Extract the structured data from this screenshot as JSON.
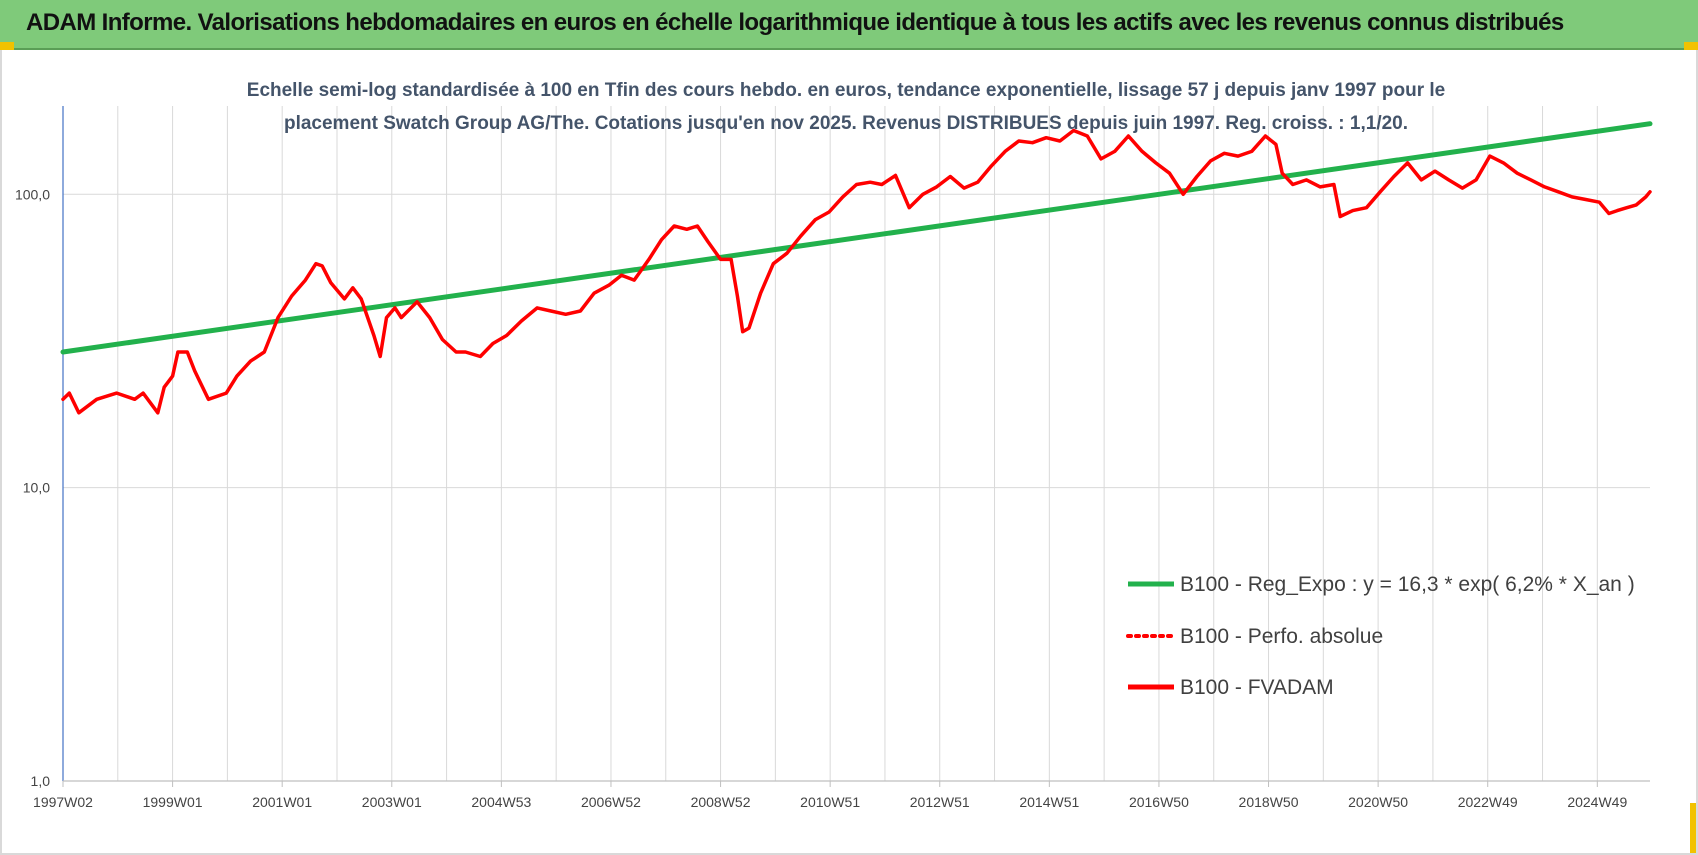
{
  "page": {
    "title": "ADAM Informe. Valorisations hebdomadaires en euros en échelle logarithmique identique à tous les actifs avec les revenus connus distribués"
  },
  "colors": {
    "banner": "#7fca7a",
    "regression": "#22b14c",
    "perfo": "#ff0000",
    "fvadam": "#ff0000",
    "grid": "#d9d9d9"
  },
  "chart_data": {
    "type": "line",
    "title": "",
    "subtitle_lines": [
      "Echelle semi-log standardisée à 100 en Tfin des cours hebdo. en euros, tendance exponentielle, lissage 57 j depuis janv 1997 pour le",
      "placement Swatch Group AG/The. Cotations jusqu'en nov 2025. Revenus DISTRIBUES depuis juin 1997. Reg. croiss. : 1,1/20."
    ],
    "xlabel": "",
    "ylabel": "",
    "y_scale": "log",
    "ylim": [
      1,
      200
    ],
    "y_ticks": [
      {
        "value": 1,
        "label": "1,0"
      },
      {
        "value": 10,
        "label": "10,0"
      },
      {
        "value": 100,
        "label": "100,0"
      }
    ],
    "x_range": [
      "1997-01-08",
      "2025-11-19"
    ],
    "x_ticks": [
      {
        "date": "1997-01-08",
        "label": "1997W02"
      },
      {
        "date": "1999-01-06",
        "label": "1999W01"
      },
      {
        "date": "2001-01-03",
        "label": "2001W01"
      },
      {
        "date": "2003-01-01",
        "label": "2003W01"
      },
      {
        "date": "2004-12-29",
        "label": "2004W53"
      },
      {
        "date": "2006-12-27",
        "label": "2006W52"
      },
      {
        "date": "2008-12-24",
        "label": "2008W52"
      },
      {
        "date": "2010-12-22",
        "label": "2010W51"
      },
      {
        "date": "2012-12-19",
        "label": "2012W51"
      },
      {
        "date": "2014-12-17",
        "label": "2014W51"
      },
      {
        "date": "2016-12-14",
        "label": "2016W50"
      },
      {
        "date": "2018-12-12",
        "label": "2018W50"
      },
      {
        "date": "2020-12-09",
        "label": "2020W50"
      },
      {
        "date": "2022-12-07",
        "label": "2022W49"
      },
      {
        "date": "2024-12-04",
        "label": "2024W49"
      }
    ],
    "grid": true,
    "legend_position": "bottom-right",
    "series": [
      {
        "name": "B100 - Reg_Expo : y = 16,3 * exp( 6,2% *  X_an )",
        "color": "#22b14c",
        "style": "solid",
        "points": [
          {
            "x": "1997-01-08",
            "y": 29
          },
          {
            "x": "2025-11-19",
            "y": 174
          }
        ]
      },
      {
        "name": "B100 - Perfo. absolue",
        "color": "#ff0000",
        "style": "dotted",
        "points": []
      },
      {
        "name": "B100 - FVADAM",
        "color": "#ff0000",
        "style": "solid",
        "points": [
          {
            "x": "1997-01-08",
            "y": 20
          },
          {
            "x": "1997-02-19",
            "y": 21
          },
          {
            "x": "1997-04-23",
            "y": 18
          },
          {
            "x": "1997-08-20",
            "y": 20
          },
          {
            "x": "1997-12-31",
            "y": 21
          },
          {
            "x": "1998-04-29",
            "y": 20
          },
          {
            "x": "1998-06-24",
            "y": 21
          },
          {
            "x": "1998-09-30",
            "y": 18
          },
          {
            "x": "1998-11-11",
            "y": 22
          },
          {
            "x": "1999-01-06",
            "y": 24
          },
          {
            "x": "1999-02-10",
            "y": 29
          },
          {
            "x": "1999-04-14",
            "y": 29
          },
          {
            "x": "1999-06-02",
            "y": 25
          },
          {
            "x": "1999-09-01",
            "y": 20
          },
          {
            "x": "1999-12-29",
            "y": 21
          },
          {
            "x": "2000-03-08",
            "y": 24
          },
          {
            "x": "2000-06-07",
            "y": 27
          },
          {
            "x": "2000-09-06",
            "y": 29
          },
          {
            "x": "2000-12-06",
            "y": 38
          },
          {
            "x": "2001-03-07",
            "y": 45
          },
          {
            "x": "2001-06-06",
            "y": 51
          },
          {
            "x": "2001-08-15",
            "y": 58
          },
          {
            "x": "2001-09-26",
            "y": 57
          },
          {
            "x": "2001-11-21",
            "y": 50
          },
          {
            "x": "2002-02-20",
            "y": 44
          },
          {
            "x": "2002-04-17",
            "y": 48
          },
          {
            "x": "2002-06-12",
            "y": 44
          },
          {
            "x": "2002-09-04",
            "y": 33
          },
          {
            "x": "2002-10-16",
            "y": 28
          },
          {
            "x": "2002-11-27",
            "y": 38
          },
          {
            "x": "2003-01-22",
            "y": 41
          },
          {
            "x": "2003-03-05",
            "y": 38
          },
          {
            "x": "2003-06-18",
            "y": 43
          },
          {
            "x": "2003-09-10",
            "y": 38
          },
          {
            "x": "2003-12-03",
            "y": 32
          },
          {
            "x": "2004-03-03",
            "y": 29
          },
          {
            "x": "2004-05-05",
            "y": 29
          },
          {
            "x": "2004-08-11",
            "y": 28
          },
          {
            "x": "2004-11-03",
            "y": 31
          },
          {
            "x": "2005-02-02",
            "y": 33
          },
          {
            "x": "2005-05-11",
            "y": 37
          },
          {
            "x": "2005-08-24",
            "y": 41
          },
          {
            "x": "2005-11-23",
            "y": 40
          },
          {
            "x": "2006-03-01",
            "y": 39
          },
          {
            "x": "2006-06-07",
            "y": 40
          },
          {
            "x": "2006-09-06",
            "y": 46
          },
          {
            "x": "2006-12-13",
            "y": 49
          },
          {
            "x": "2007-03-07",
            "y": 53
          },
          {
            "x": "2007-05-30",
            "y": 51
          },
          {
            "x": "2007-09-05",
            "y": 60
          },
          {
            "x": "2007-11-28",
            "y": 70
          },
          {
            "x": "2008-02-20",
            "y": 78
          },
          {
            "x": "2008-05-14",
            "y": 76
          },
          {
            "x": "2008-07-23",
            "y": 78
          },
          {
            "x": "2008-10-01",
            "y": 69
          },
          {
            "x": "2008-12-24",
            "y": 60
          },
          {
            "x": "2009-03-04",
            "y": 60
          },
          {
            "x": "2009-04-15",
            "y": 45
          },
          {
            "x": "2009-05-20",
            "y": 34
          },
          {
            "x": "2009-07-01",
            "y": 35
          },
          {
            "x": "2009-09-16",
            "y": 46
          },
          {
            "x": "2009-12-09",
            "y": 58
          },
          {
            "x": "2010-03-10",
            "y": 63
          },
          {
            "x": "2010-06-09",
            "y": 72
          },
          {
            "x": "2010-09-15",
            "y": 82
          },
          {
            "x": "2010-12-15",
            "y": 87
          },
          {
            "x": "2011-03-16",
            "y": 98
          },
          {
            "x": "2011-06-15",
            "y": 108
          },
          {
            "x": "2011-09-14",
            "y": 110
          },
          {
            "x": "2011-11-30",
            "y": 108
          },
          {
            "x": "2012-02-29",
            "y": 116
          },
          {
            "x": "2012-05-30",
            "y": 90
          },
          {
            "x": "2012-08-29",
            "y": 100
          },
          {
            "x": "2012-11-28",
            "y": 106
          },
          {
            "x": "2013-02-27",
            "y": 115
          },
          {
            "x": "2013-05-29",
            "y": 105
          },
          {
            "x": "2013-08-28",
            "y": 110
          },
          {
            "x": "2013-11-27",
            "y": 125
          },
          {
            "x": "2014-02-26",
            "y": 140
          },
          {
            "x": "2014-05-28",
            "y": 152
          },
          {
            "x": "2014-08-27",
            "y": 150
          },
          {
            "x": "2014-11-26",
            "y": 156
          },
          {
            "x": "2015-02-25",
            "y": 152
          },
          {
            "x": "2015-05-27",
            "y": 165
          },
          {
            "x": "2015-08-26",
            "y": 158
          },
          {
            "x": "2015-11-25",
            "y": 132
          },
          {
            "x": "2016-02-24",
            "y": 140
          },
          {
            "x": "2016-05-25",
            "y": 158
          },
          {
            "x": "2016-08-24",
            "y": 140
          },
          {
            "x": "2016-11-23",
            "y": 128
          },
          {
            "x": "2017-02-22",
            "y": 118
          },
          {
            "x": "2017-05-24",
            "y": 100
          },
          {
            "x": "2017-08-23",
            "y": 115
          },
          {
            "x": "2017-11-22",
            "y": 130
          },
          {
            "x": "2018-02-21",
            "y": 138
          },
          {
            "x": "2018-05-23",
            "y": 135
          },
          {
            "x": "2018-08-22",
            "y": 140
          },
          {
            "x": "2018-11-21",
            "y": 158
          },
          {
            "x": "2019-01-30",
            "y": 148
          },
          {
            "x": "2019-03-13",
            "y": 118
          },
          {
            "x": "2019-05-22",
            "y": 108
          },
          {
            "x": "2019-08-21",
            "y": 112
          },
          {
            "x": "2019-11-20",
            "y": 106
          },
          {
            "x": "2020-02-19",
            "y": 108
          },
          {
            "x": "2020-04-01",
            "y": 84
          },
          {
            "x": "2020-06-24",
            "y": 88
          },
          {
            "x": "2020-09-23",
            "y": 90
          },
          {
            "x": "2020-12-23",
            "y": 102
          },
          {
            "x": "2021-03-24",
            "y": 115
          },
          {
            "x": "2021-06-23",
            "y": 128
          },
          {
            "x": "2021-09-22",
            "y": 112
          },
          {
            "x": "2021-12-22",
            "y": 120
          },
          {
            "x": "2022-03-23",
            "y": 112
          },
          {
            "x": "2022-06-22",
            "y": 105
          },
          {
            "x": "2022-09-21",
            "y": 112
          },
          {
            "x": "2022-12-21",
            "y": 135
          },
          {
            "x": "2023-03-22",
            "y": 128
          },
          {
            "x": "2023-06-21",
            "y": 118
          },
          {
            "x": "2023-09-20",
            "y": 112
          },
          {
            "x": "2023-12-20",
            "y": 106
          },
          {
            "x": "2024-03-20",
            "y": 102
          },
          {
            "x": "2024-06-19",
            "y": 98
          },
          {
            "x": "2024-09-18",
            "y": 96
          },
          {
            "x": "2024-12-18",
            "y": 94
          },
          {
            "x": "2025-02-19",
            "y": 86
          },
          {
            "x": "2025-04-16",
            "y": 88
          },
          {
            "x": "2025-06-18",
            "y": 90
          },
          {
            "x": "2025-08-20",
            "y": 92
          },
          {
            "x": "2025-10-22",
            "y": 98
          },
          {
            "x": "2025-11-19",
            "y": 102
          }
        ]
      }
    ]
  }
}
